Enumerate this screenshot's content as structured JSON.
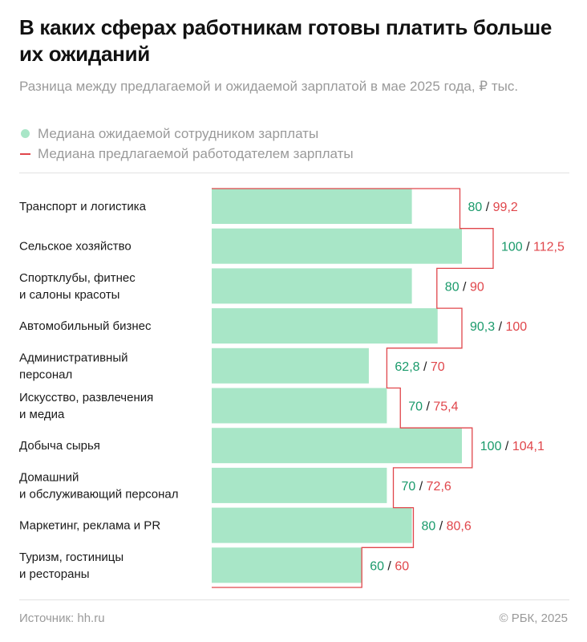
{
  "colors": {
    "expected": "#a8e6c7",
    "offered": "#e0464b",
    "expected_text": "#1a9a6b",
    "offered_text": "#e0464b",
    "label": "#1a1a1a",
    "muted": "#9a9a9a"
  },
  "legend": {
    "expected_label": "Медиана ожидаемой сотрудником зарплаты",
    "offered_label": "Медиана предлагаемой работодателем зарплаты"
  },
  "footer": {
    "source": "Источник: hh.ru",
    "copyright": "© РБК, 2025"
  },
  "chart_data": {
    "type": "bar",
    "title": "В каких сферах работникам готовы платить больше их ожиданий",
    "subtitle": "Разница между предлагаемой и ожидаемой зарплатой в мае 2025 года, ₽ тыс.",
    "categories": [
      [
        "Транспорт и логистика"
      ],
      [
        "Сельское хозяйство"
      ],
      [
        "Спортклубы, фитнес",
        "и салоны красоты"
      ],
      [
        "Автомобильный бизнес"
      ],
      [
        "Административный",
        "персонал"
      ],
      [
        "Искусство, развлечения",
        "и медиа"
      ],
      [
        "Добыча сырья"
      ],
      [
        "Домашний",
        "и обслуживающий персонал"
      ],
      [
        "Маркетинг, реклама и PR"
      ],
      [
        "Туризм, гостиницы",
        "и рестораны"
      ]
    ],
    "series": [
      {
        "name": "Медиана ожидаемой сотрудником зарплаты",
        "values": [
          80,
          100,
          80,
          90.3,
          62.8,
          70,
          100,
          70,
          80,
          60
        ]
      },
      {
        "name": "Медиана предлагаемой работодателем зарплаты",
        "values": [
          99.2,
          112.5,
          90,
          100,
          70,
          75.4,
          104.1,
          72.6,
          80.6,
          60
        ]
      }
    ],
    "value_labels": {
      "expected": [
        "80",
        "100",
        "80",
        "90,3",
        "62,8",
        "70",
        "100",
        "70",
        "80",
        "60"
      ],
      "offered": [
        "99,2",
        "112,5",
        "90",
        "100",
        "70",
        "75,4",
        "104,1",
        "72,6",
        "80,6",
        "60"
      ]
    },
    "xlim": [
      0,
      112.5
    ]
  }
}
